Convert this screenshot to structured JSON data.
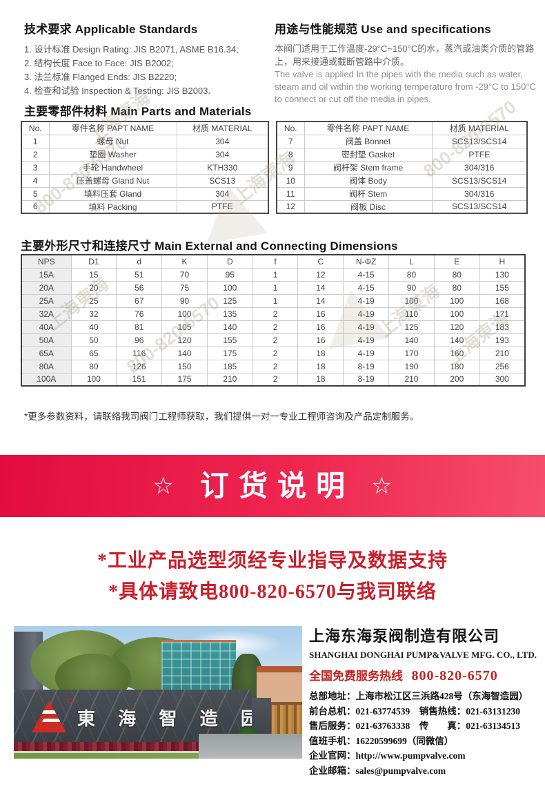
{
  "standards": {
    "title": "技术要求 Applicable Standards",
    "items": [
      "1. 设计标准 Design Rating: JIS B2071, ASME B16.34;",
      "2. 结构长度 Face to Face: JIS B2002;",
      "3. 法兰标准 Flanged Ends: JIS B2220;",
      "4. 检查和试验 Inspection & Testing: JIS B2003."
    ]
  },
  "usage": {
    "title": "用途与性能规范 Use and specifications",
    "text_cn": "本阀门适用于工作温度-29°C~150°C的水，蒸汽或油类介质的管路上，用来接通或截断管路中介质。",
    "text_en": "The valve is applied In the pipes with the media such as water, steam and oil within the working temperature from -29°C to 150°C to connect or cut off the media in pipes."
  },
  "parts": {
    "title": "主要零部件材料 Main Parts and Materials",
    "headers": [
      "No.",
      "零件名称 PAPT NAME",
      "材质 MATERIAL"
    ],
    "left_rows": [
      [
        "1",
        "螺母 Nut",
        "304"
      ],
      [
        "2",
        "垫圈 Washer",
        "304"
      ],
      [
        "3",
        "手轮 Handwheel",
        "KTH330"
      ],
      [
        "4",
        "压盖螺母 Gland Nut",
        "SCS13"
      ],
      [
        "5",
        "填料压套 Gland",
        "304"
      ],
      [
        "6",
        "填料 Packing",
        "PTFE"
      ]
    ],
    "right_rows": [
      [
        "7",
        "阀盖 Bonnet",
        "SCS13/SCS14"
      ],
      [
        "8",
        "密封垫 Gasket",
        "PTFE"
      ],
      [
        "9",
        "阀杆架 Stem frame",
        "304/316"
      ],
      [
        "10",
        "阀体 Body",
        "SCS13/SCS14"
      ],
      [
        "11",
        "阀杆 Stem",
        "304/316"
      ],
      [
        "12",
        "阀板 Disc",
        "SCS13/SCS14"
      ]
    ]
  },
  "dimensions": {
    "title": "主要外形尺寸和连接尺寸 Main External and Connecting Dimensions",
    "headers": [
      "NPS",
      "D1",
      "d",
      "K",
      "D",
      "f",
      "C",
      "N-ΦZ",
      "L",
      "E",
      "H"
    ],
    "rows": [
      [
        "15A",
        "15",
        "51",
        "70",
        "95",
        "1",
        "12",
        "4-15",
        "80",
        "80",
        "130"
      ],
      [
        "20A",
        "20",
        "56",
        "75",
        "100",
        "1",
        "14",
        "4-15",
        "90",
        "80",
        "155"
      ],
      [
        "25A",
        "25",
        "67",
        "90",
        "125",
        "1",
        "14",
        "4-19",
        "100",
        "100",
        "168"
      ],
      [
        "32A",
        "32",
        "76",
        "100",
        "135",
        "2",
        "16",
        "4-19",
        "110",
        "100",
        "171"
      ],
      [
        "40A",
        "40",
        "81",
        "105",
        "140",
        "2",
        "16",
        "4-19",
        "125",
        "120",
        "183"
      ],
      [
        "50A",
        "50",
        "96",
        "120",
        "155",
        "2",
        "16",
        "4-19",
        "140",
        "140",
        "193"
      ],
      [
        "65A",
        "65",
        "116",
        "140",
        "175",
        "2",
        "18",
        "4-19",
        "170",
        "160",
        "210"
      ],
      [
        "80A",
        "80",
        "126",
        "150",
        "185",
        "2",
        "18",
        "8-19",
        "190",
        "180",
        "256"
      ],
      [
        "100A",
        "100",
        "151",
        "175",
        "210",
        "2",
        "18",
        "8-19",
        "210",
        "200",
        "300"
      ]
    ]
  },
  "footnote": "*更多参数资料，请联络我司阀门工程师获取，我们提供一对一专业工程师咨询及产品定制服务。",
  "banner": {
    "star": "☆",
    "text": "订货说明",
    "bg_left": "#e30c3f",
    "bg_right": "#f64e6b"
  },
  "notice": {
    "line1": "*工业产品选型须经专业指导及数据支持",
    "line2": "*具体请致电800-820-6570与我司联络",
    "color": "#c9202c"
  },
  "photo": {
    "sign_text": "東 海 智 造 园"
  },
  "company": {
    "name_cn": "上海东海泵阀制造有限公司",
    "name_en": "SHANGHAI DONGHAI PUMP&VALVE MFG. CO., LTD.",
    "hotline_label": "全国免费服务热线",
    "hotline_number": "800-820-6570",
    "hotline_color": "#c3231f",
    "contact_lines": [
      "总部地址：上海市松江区三浜路428号（东海智造园）",
      "前台总机：021-63774539　销售热线：021-63131230",
      "售后服务：021-63763338　传　　真：021-63134513",
      "值班手机：16220599699（同微信）",
      "企业官网：http://www.pumpvalve.com",
      "企业邮箱：sales@pumpvalve.com"
    ]
  },
  "watermark": {
    "text1": "上海東海",
    "text2": "800-820-6570"
  }
}
